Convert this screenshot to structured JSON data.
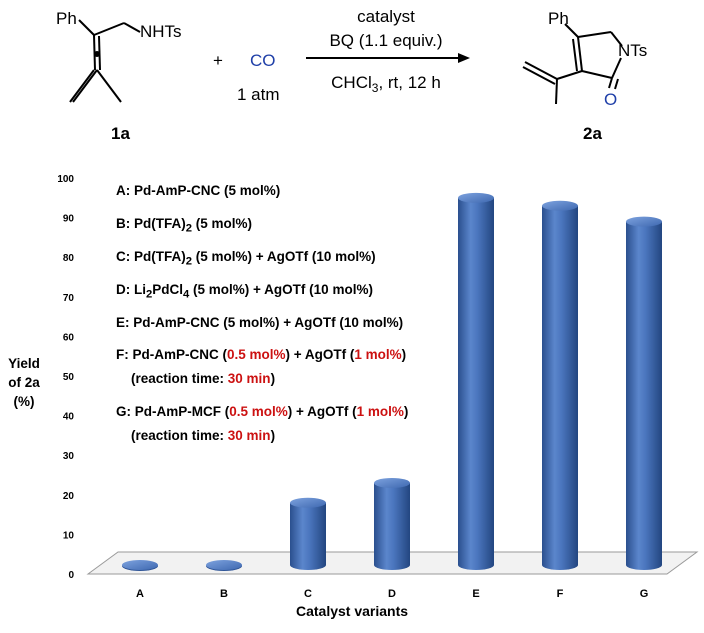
{
  "scheme": {
    "reactant_label": "1a",
    "product_label": "2a",
    "reactant_ph": "Ph",
    "reactant_group": "NHTs",
    "plus": "+",
    "co": "CO",
    "co_pressure": "1 atm",
    "condition_top": "catalyst",
    "condition_mid": "BQ (1.1 equiv.)",
    "condition_bottom_a": "CHCl",
    "condition_bottom_sub": "3",
    "condition_bottom_b": ", rt, 12 h",
    "product_ph": "Ph",
    "product_group": "NTs",
    "product_o": "O"
  },
  "legend": {
    "A": "A: Pd-AmP-CNC (5 mol%)",
    "B_pre": "B: Pd(TFA)",
    "B_sub": "2",
    "B_post": " (5 mol%)",
    "C_pre": "C: Pd(TFA)",
    "C_sub": "2",
    "C_post": " (5 mol%) + AgOTf (10 mol%)",
    "D_pre": "D: Li",
    "D_sub1": "2",
    "D_mid": "PdCl",
    "D_sub2": "4",
    "D_post": " (5 mol%) + AgOTf (10 mol%)",
    "E": "E: Pd-AmP-CNC (5 mol%) + AgOTf (10 mol%)",
    "F_pre": "F: Pd-AmP-CNC (",
    "F_red1": "0.5 mol%",
    "F_mid": ") + AgOTf (",
    "F_red2": "1 mol%",
    "F_post": ")",
    "F_time_pre": "(reaction time: ",
    "F_time_red": "30 min",
    "F_time_post": ")",
    "G_pre": "G: Pd-AmP-MCF (",
    "G_red1": "0.5 mol%",
    "G_mid": ") + AgOTf (",
    "G_red2": "1 mol%",
    "G_post": ")",
    "G_time_pre": "(reaction time: ",
    "G_time_red": "30 min",
    "G_time_post": ")"
  },
  "chart_data": {
    "type": "bar",
    "categories": [
      "A",
      "B",
      "C",
      "D",
      "E",
      "F",
      "G"
    ],
    "values": [
      0,
      0,
      19,
      24,
      96,
      94,
      90
    ],
    "ylabel_lines": [
      "Yield",
      "of 2a",
      "(%)"
    ],
    "xlabel": "Catalyst variants",
    "ylim": [
      0,
      100
    ],
    "yticks": [
      0,
      10,
      20,
      30,
      40,
      50,
      60,
      70,
      80,
      90,
      100
    ],
    "grid": false,
    "legend_position": "top-left",
    "bar_color": "#4472c4"
  }
}
